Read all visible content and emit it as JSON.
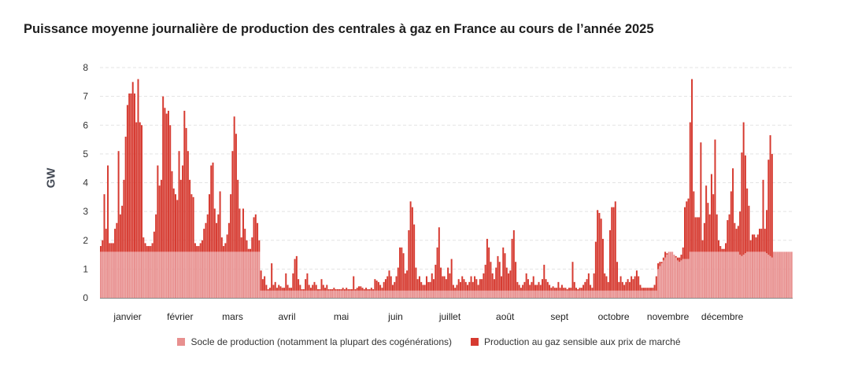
{
  "title": "Puissance moyenne journalière de production des centrales à gaz en France au cours de l’année 2025",
  "chart_data": {
    "type": "bar",
    "stacked": true,
    "ylabel": "GW",
    "ylim": [
      0,
      8
    ],
    "yticks": [
      0,
      1,
      2,
      3,
      4,
      5,
      6,
      7,
      8
    ],
    "grid": true,
    "legend_position": "bottom",
    "months": [
      "janvier",
      "février",
      "mars",
      "avril",
      "mai",
      "juin",
      "juillet",
      "août",
      "sept",
      "octobre",
      "novembre",
      "décembre"
    ],
    "x_unit": "day of year 2025 (1–365)",
    "series": [
      {
        "name": "Socle de production (notamment la plupart des cogénérations)",
        "color": "#e8908f",
        "values": [
          1.6,
          1.6,
          1.6,
          1.6,
          1.6,
          1.6,
          1.6,
          1.6,
          1.6,
          1.6,
          1.6,
          1.6,
          1.6,
          1.6,
          1.6,
          1.6,
          1.6,
          1.6,
          1.6,
          1.6,
          1.6,
          1.6,
          1.6,
          1.6,
          1.6,
          1.6,
          1.6,
          1.6,
          1.6,
          1.6,
          1.6,
          1.6,
          1.6,
          1.6,
          1.6,
          1.6,
          1.6,
          1.6,
          1.6,
          1.6,
          1.6,
          1.6,
          1.6,
          1.6,
          1.6,
          1.6,
          1.6,
          1.6,
          1.6,
          1.6,
          1.6,
          1.6,
          1.6,
          1.6,
          1.6,
          1.6,
          1.6,
          1.6,
          1.6,
          1.6,
          1.6,
          1.6,
          1.6,
          1.6,
          1.6,
          1.6,
          1.6,
          1.6,
          1.6,
          1.6,
          1.6,
          1.6,
          1.6,
          1.6,
          1.6,
          1.6,
          1.6,
          1.6,
          1.6,
          1.6,
          1.6,
          1.6,
          1.6,
          1.6,
          1.6,
          1.6,
          1.6,
          1.6,
          1.6,
          1.6,
          0.25,
          0.25,
          0.25,
          0.25,
          0.25,
          0.25,
          0.25,
          0.25,
          0.25,
          0.25,
          0.25,
          0.25,
          0.25,
          0.25,
          0.25,
          0.25,
          0.25,
          0.25,
          0.25,
          0.25,
          0.25,
          0.25,
          0.25,
          0.25,
          0.25,
          0.25,
          0.25,
          0.25,
          0.25,
          0.25,
          0.25,
          0.25,
          0.25,
          0.25,
          0.25,
          0.25,
          0.25,
          0.25,
          0.25,
          0.25,
          0.25,
          0.25,
          0.25,
          0.25,
          0.25,
          0.25,
          0.25,
          0.25,
          0.25,
          0.25,
          0.25,
          0.25,
          0.25,
          0.25,
          0.25,
          0.25,
          0.25,
          0.25,
          0.25,
          0.25,
          0.25,
          0.25,
          0.25,
          0.25,
          0.25,
          0.25,
          0.25,
          0.25,
          0.25,
          0.25,
          0.25,
          0.25,
          0.25,
          0.25,
          0.25,
          0.25,
          0.25,
          0.25,
          0.25,
          0.25,
          0.25,
          0.25,
          0.25,
          0.25,
          0.25,
          0.25,
          0.25,
          0.25,
          0.25,
          0.25,
          0.25,
          0.25,
          0.25,
          0.25,
          0.25,
          0.25,
          0.25,
          0.25,
          0.25,
          0.25,
          0.25,
          0.25,
          0.25,
          0.25,
          0.25,
          0.25,
          0.25,
          0.25,
          0.25,
          0.25,
          0.25,
          0.25,
          0.25,
          0.25,
          0.25,
          0.25,
          0.25,
          0.25,
          0.25,
          0.25,
          0.25,
          0.25,
          0.25,
          0.25,
          0.25,
          0.25,
          0.25,
          0.25,
          0.25,
          0.25,
          0.25,
          0.25,
          0.25,
          0.25,
          0.25,
          0.25,
          0.25,
          0.25,
          0.25,
          0.25,
          0.25,
          0.25,
          0.25,
          0.25,
          0.25,
          0.25,
          0.25,
          0.25,
          0.25,
          0.25,
          0.25,
          0.25,
          0.25,
          0.25,
          0.25,
          0.25,
          0.25,
          0.25,
          0.25,
          0.25,
          0.25,
          0.25,
          0.25,
          0.25,
          0.25,
          0.25,
          0.25,
          0.25,
          0.25,
          0.25,
          0.25,
          0.25,
          0.25,
          0.25,
          0.25,
          0.25,
          0.25,
          0.25,
          0.25,
          0.25,
          0.25,
          0.25,
          0.25,
          0.25,
          0.25,
          0.25,
          0.25,
          0.25,
          0.25,
          0.25,
          0.25,
          0.25,
          0.25,
          0.25,
          0.25,
          0.25,
          0.25,
          0.25,
          0.25,
          0.25,
          0.25,
          0.25,
          0.25,
          0.25,
          0.25,
          0.25,
          0.25,
          0.25,
          0.25,
          0.25,
          0.25,
          0.25,
          0.25,
          0.25,
          0.25,
          0.25,
          0.25,
          0.25,
          0.25,
          0.25,
          0.25,
          0.25,
          0.25,
          1.0,
          1.1,
          1.2,
          1.3,
          1.4,
          1.5,
          1.6,
          1.6,
          1.6,
          1.5,
          1.4,
          1.3,
          1.25,
          1.3,
          1.35,
          1.35,
          1.35,
          1.35,
          1.6,
          1.6,
          1.6,
          1.6,
          1.6,
          1.6,
          1.6,
          1.6,
          1.6,
          1.6,
          1.6,
          1.6,
          1.6,
          1.6,
          1.6,
          1.6,
          1.6,
          1.6,
          1.6,
          1.6,
          1.6,
          1.6,
          1.6,
          1.6,
          1.6,
          1.6,
          1.6,
          1.6,
          1.5,
          1.45,
          1.5,
          1.55,
          1.6,
          1.6,
          1.6,
          1.6,
          1.6,
          1.6,
          1.6,
          1.6,
          1.6,
          1.6,
          1.6,
          1.55,
          1.5,
          1.45,
          1.4,
          1.6,
          1.6,
          1.6,
          1.6,
          1.6,
          1.6,
          1.6,
          1.6,
          1.6,
          1.6,
          1.6
        ]
      },
      {
        "name": "Production au gaz sensible aux prix de marché",
        "color": "#d63a30",
        "values": [
          0.2,
          0.4,
          2.0,
          0.8,
          3.0,
          0.3,
          0.3,
          0.3,
          0.8,
          1.0,
          3.5,
          1.3,
          1.6,
          2.5,
          4.0,
          5.1,
          5.5,
          5.5,
          5.9,
          5.5,
          4.5,
          6.0,
          4.5,
          4.4,
          0.5,
          0.3,
          0.2,
          0.2,
          0.2,
          0.3,
          0.7,
          1.3,
          3.0,
          2.3,
          2.5,
          5.4,
          5.0,
          4.8,
          4.9,
          4.4,
          2.8,
          2.2,
          2.0,
          1.8,
          3.5,
          2.5,
          3.0,
          4.9,
          4.3,
          3.5,
          2.5,
          2.0,
          1.9,
          0.3,
          0.2,
          0.2,
          0.3,
          0.4,
          0.8,
          1.0,
          1.3,
          2.0,
          3.0,
          3.1,
          1.5,
          1.0,
          1.3,
          2.1,
          0.5,
          0.2,
          0.3,
          0.6,
          1.0,
          2.0,
          3.5,
          4.7,
          4.1,
          2.5,
          1.5,
          0.5,
          1.5,
          0.8,
          0.4,
          0.1,
          0.1,
          0.5,
          1.2,
          1.3,
          1.0,
          0.4,
          0.7,
          0.4,
          0.5,
          0.2,
          0.05,
          0.1,
          0.95,
          0.2,
          0.3,
          0.1,
          0.2,
          0.15,
          0.1,
          0.1,
          0.6,
          0.2,
          0.1,
          0.1,
          0.6,
          1.1,
          1.2,
          0.4,
          0.2,
          0.05,
          0.05,
          0.4,
          0.6,
          0.2,
          0.1,
          0.2,
          0.3,
          0.2,
          0.05,
          0.05,
          0.4,
          0.2,
          0.1,
          0.2,
          0.05,
          0.05,
          0.05,
          0.1,
          0.05,
          0.05,
          0.05,
          0.05,
          0.1,
          0.05,
          0.1,
          0.05,
          0.05,
          0.05,
          0.5,
          0.05,
          0.1,
          0.15,
          0.15,
          0.1,
          0.05,
          0.1,
          0.05,
          0.05,
          0.1,
          0.05,
          0.4,
          0.35,
          0.3,
          0.2,
          0.1,
          0.3,
          0.4,
          0.5,
          0.7,
          0.5,
          0.2,
          0.3,
          0.5,
          0.8,
          1.5,
          1.5,
          1.3,
          0.6,
          0.7,
          2.1,
          3.1,
          2.9,
          2.3,
          0.8,
          0.4,
          0.5,
          0.3,
          0.2,
          0.2,
          0.5,
          0.3,
          0.3,
          0.6,
          0.4,
          0.9,
          1.5,
          2.2,
          0.8,
          0.5,
          0.5,
          0.4,
          0.8,
          0.6,
          1.1,
          0.2,
          0.1,
          0.2,
          0.4,
          0.3,
          0.5,
          0.4,
          0.3,
          0.2,
          0.3,
          0.5,
          0.3,
          0.5,
          0.4,
          0.2,
          0.4,
          0.4,
          0.6,
          0.9,
          1.8,
          1.5,
          1.0,
          0.6,
          0.4,
          0.8,
          1.2,
          1.0,
          0.5,
          1.5,
          1.3,
          0.8,
          0.6,
          0.7,
          1.8,
          2.1,
          1.0,
          0.3,
          0.2,
          0.1,
          0.2,
          0.3,
          0.6,
          0.4,
          0.2,
          0.3,
          0.5,
          0.2,
          0.2,
          0.3,
          0.2,
          0.4,
          0.9,
          0.4,
          0.3,
          0.2,
          0.1,
          0.15,
          0.1,
          0.1,
          0.3,
          0.1,
          0.2,
          0.1,
          0.1,
          0.05,
          0.1,
          0.1,
          1.0,
          0.3,
          0.1,
          0.05,
          0.1,
          0.1,
          0.2,
          0.3,
          0.4,
          0.6,
          0.2,
          0.1,
          0.6,
          1.7,
          2.8,
          2.7,
          2.5,
          1.8,
          0.6,
          0.5,
          0.3,
          2.1,
          2.9,
          2.9,
          3.1,
          1.0,
          0.3,
          0.5,
          0.3,
          0.2,
          0.3,
          0.4,
          0.3,
          0.5,
          0.4,
          0.5,
          0.7,
          0.5,
          0.2,
          0.1,
          0.1,
          0.1,
          0.1,
          0.1,
          0.1,
          0.1,
          0.2,
          0.5,
          0.2,
          0.15,
          0.05,
          0.1,
          0.2,
          0.05,
          0.0,
          0.0,
          0.0,
          0.0,
          0.05,
          0.1,
          0.15,
          0.2,
          0.4,
          1.8,
          2.0,
          2.1,
          4.5,
          6.0,
          2.1,
          1.2,
          1.2,
          1.2,
          3.8,
          0.4,
          1.0,
          2.3,
          1.7,
          1.3,
          2.7,
          2.0,
          3.9,
          1.3,
          0.4,
          0.2,
          0.1,
          0.1,
          0.3,
          1.1,
          1.3,
          2.1,
          2.9,
          1.0,
          0.8,
          0.9,
          1.5,
          3.6,
          4.6,
          3.4,
          2.2,
          1.6,
          0.4,
          0.6,
          0.6,
          0.5,
          0.6,
          0.8,
          0.8,
          2.5,
          0.8,
          1.5,
          3.3,
          4.2,
          3.6
        ]
      }
    ]
  },
  "legend": {
    "items": [
      {
        "label": "Socle de production (notamment la plupart des cogénérations)",
        "color": "#e8908f"
      },
      {
        "label": "Production au gaz sensible aux prix de marché",
        "color": "#d63a30"
      }
    ]
  }
}
